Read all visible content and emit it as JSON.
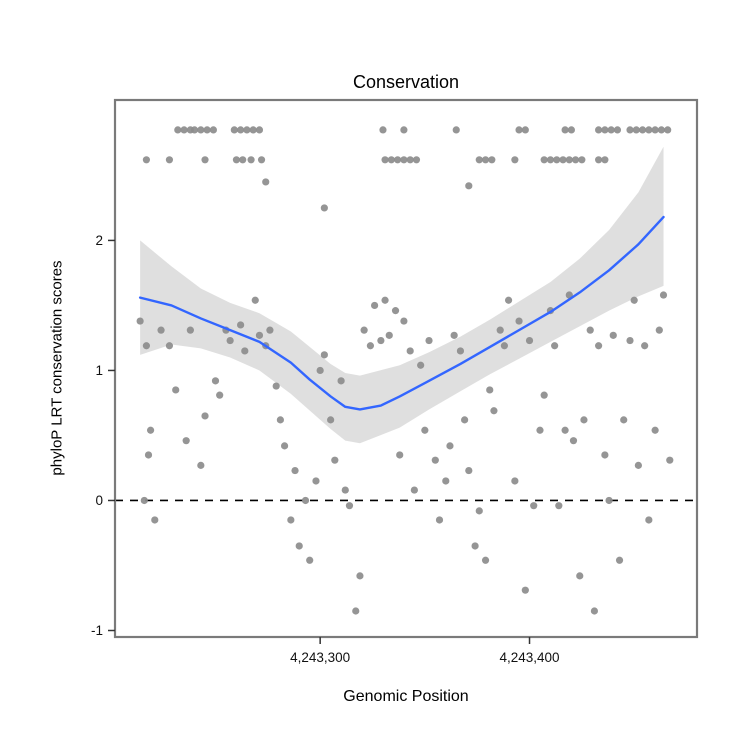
{
  "title": "Conservation",
  "chart_data": {
    "type": "scatter",
    "title": "Conservation",
    "xlabel": "Genomic Position",
    "ylabel": "phyloP LRT conservation scores",
    "xlim": [
      4243202,
      4243480
    ],
    "ylim": [
      -1.05,
      3.08
    ],
    "grid": false,
    "legend": "none",
    "x_ticks": [
      {
        "value": 4243300,
        "label": "4,243,300"
      },
      {
        "value": 4243400,
        "label": "4,243,400"
      }
    ],
    "y_ticks": [
      {
        "value": -1,
        "label": "-1"
      },
      {
        "value": 0,
        "label": "0"
      },
      {
        "value": 1,
        "label": "1"
      },
      {
        "value": 2,
        "label": "2"
      }
    ],
    "reference_line_y": 0,
    "colors": {
      "point": "#8c8c8c",
      "smooth": "#3366FF",
      "band": "#c9c9c9",
      "panel_border": "#7a7a7a",
      "dashed_line": "#000000",
      "tick": "#333333",
      "tick_label": "#111111"
    },
    "points": [
      [
        4243214,
        1.38
      ],
      [
        4243217,
        1.19
      ],
      [
        4243219,
        0.54
      ],
      [
        4243218,
        0.35
      ],
      [
        4243216,
        0.0
      ],
      [
        4243221,
        -0.15
      ],
      [
        4243224,
        1.31
      ],
      [
        4243228,
        1.19
      ],
      [
        4243231,
        0.85
      ],
      [
        4243236,
        0.46
      ],
      [
        4243238,
        1.31
      ],
      [
        4243243,
        0.27
      ],
      [
        4243245,
        0.65
      ],
      [
        4243250,
        0.92
      ],
      [
        4243252,
        0.81
      ],
      [
        4243255,
        1.31
      ],
      [
        4243257,
        1.23
      ],
      [
        4243262,
        1.35
      ],
      [
        4243264,
        1.15
      ],
      [
        4243269,
        1.54
      ],
      [
        4243271,
        1.27
      ],
      [
        4243274,
        1.19
      ],
      [
        4243276,
        1.31
      ],
      [
        4243279,
        0.88
      ],
      [
        4243281,
        0.62
      ],
      [
        4243283,
        0.42
      ],
      [
        4243286,
        -0.15
      ],
      [
        4243288,
        0.23
      ],
      [
        4243290,
        -0.35
      ],
      [
        4243293,
        0.0
      ],
      [
        4243295,
        -0.46
      ],
      [
        4243298,
        0.15
      ],
      [
        4243300,
        1.0
      ],
      [
        4243302,
        1.12
      ],
      [
        4243305,
        0.62
      ],
      [
        4243307,
        0.31
      ],
      [
        4243310,
        0.92
      ],
      [
        4243312,
        0.08
      ],
      [
        4243314,
        -0.04
      ],
      [
        4243317,
        -0.85
      ],
      [
        4243319,
        -0.58
      ],
      [
        4243321,
        1.31
      ],
      [
        4243324,
        1.19
      ],
      [
        4243326,
        1.5
      ],
      [
        4243329,
        1.23
      ],
      [
        4243331,
        1.54
      ],
      [
        4243333,
        1.27
      ],
      [
        4243336,
        1.46
      ],
      [
        4243338,
        0.35
      ],
      [
        4243340,
        1.38
      ],
      [
        4243343,
        1.15
      ],
      [
        4243345,
        0.08
      ],
      [
        4243348,
        1.04
      ],
      [
        4243350,
        0.54
      ],
      [
        4243352,
        1.23
      ],
      [
        4243355,
        0.31
      ],
      [
        4243357,
        -0.15
      ],
      [
        4243360,
        0.15
      ],
      [
        4243362,
        0.42
      ],
      [
        4243364,
        1.27
      ],
      [
        4243367,
        1.15
      ],
      [
        4243369,
        0.62
      ],
      [
        4243371,
        0.23
      ],
      [
        4243374,
        -0.35
      ],
      [
        4243376,
        -0.08
      ],
      [
        4243379,
        -0.46
      ],
      [
        4243381,
        0.85
      ],
      [
        4243383,
        0.69
      ],
      [
        4243386,
        1.31
      ],
      [
        4243388,
        1.19
      ],
      [
        4243390,
        1.54
      ],
      [
        4243393,
        0.15
      ],
      [
        4243395,
        1.38
      ],
      [
        4243398,
        -0.69
      ],
      [
        4243400,
        1.23
      ],
      [
        4243402,
        -0.04
      ],
      [
        4243405,
        0.54
      ],
      [
        4243407,
        0.81
      ],
      [
        4243410,
        1.46
      ],
      [
        4243412,
        1.19
      ],
      [
        4243414,
        -0.04
      ],
      [
        4243417,
        0.54
      ],
      [
        4243419,
        1.58
      ],
      [
        4243421,
        0.46
      ],
      [
        4243424,
        -0.58
      ],
      [
        4243426,
        0.62
      ],
      [
        4243429,
        1.31
      ],
      [
        4243431,
        -0.85
      ],
      [
        4243433,
        1.19
      ],
      [
        4243436,
        0.35
      ],
      [
        4243438,
        0.0
      ],
      [
        4243440,
        1.27
      ],
      [
        4243443,
        -0.46
      ],
      [
        4243445,
        0.62
      ],
      [
        4243448,
        1.23
      ],
      [
        4243450,
        1.54
      ],
      [
        4243452,
        0.27
      ],
      [
        4243455,
        1.19
      ],
      [
        4243457,
        -0.15
      ],
      [
        4243460,
        0.54
      ],
      [
        4243462,
        1.31
      ],
      [
        4243464,
        1.58
      ],
      [
        4243467,
        0.31
      ],
      [
        4243274,
        2.45
      ],
      [
        4243302,
        2.25
      ],
      [
        4243371,
        2.42
      ],
      [
        4243232,
        2.85
      ],
      [
        4243235,
        2.85
      ],
      [
        4243238,
        2.85
      ],
      [
        4243240,
        2.85
      ],
      [
        4243243,
        2.85
      ],
      [
        4243246,
        2.85
      ],
      [
        4243249,
        2.85
      ],
      [
        4243259,
        2.85
      ],
      [
        4243262,
        2.85
      ],
      [
        4243265,
        2.85
      ],
      [
        4243268,
        2.85
      ],
      [
        4243271,
        2.85
      ],
      [
        4243330,
        2.85
      ],
      [
        4243340,
        2.85
      ],
      [
        4243365,
        2.85
      ],
      [
        4243395,
        2.85
      ],
      [
        4243398,
        2.85
      ],
      [
        4243417,
        2.85
      ],
      [
        4243420,
        2.85
      ],
      [
        4243433,
        2.85
      ],
      [
        4243436,
        2.85
      ],
      [
        4243439,
        2.85
      ],
      [
        4243442,
        2.85
      ],
      [
        4243448,
        2.85
      ],
      [
        4243451,
        2.85
      ],
      [
        4243454,
        2.85
      ],
      [
        4243457,
        2.85
      ],
      [
        4243460,
        2.85
      ],
      [
        4243463,
        2.85
      ],
      [
        4243466,
        2.85
      ],
      [
        4243217,
        2.62
      ],
      [
        4243228,
        2.62
      ],
      [
        4243245,
        2.62
      ],
      [
        4243260,
        2.62
      ],
      [
        4243263,
        2.62
      ],
      [
        4243267,
        2.62
      ],
      [
        4243272,
        2.62
      ],
      [
        4243331,
        2.62
      ],
      [
        4243334,
        2.62
      ],
      [
        4243337,
        2.62
      ],
      [
        4243340,
        2.62
      ],
      [
        4243343,
        2.62
      ],
      [
        4243346,
        2.62
      ],
      [
        4243376,
        2.62
      ],
      [
        4243379,
        2.62
      ],
      [
        4243382,
        2.62
      ],
      [
        4243393,
        2.62
      ],
      [
        4243407,
        2.62
      ],
      [
        4243410,
        2.62
      ],
      [
        4243413,
        2.62
      ],
      [
        4243416,
        2.62
      ],
      [
        4243419,
        2.62
      ],
      [
        4243422,
        2.62
      ],
      [
        4243425,
        2.62
      ],
      [
        4243433,
        2.62
      ],
      [
        4243436,
        2.62
      ]
    ],
    "smooth_line": [
      [
        4243214,
        1.56
      ],
      [
        4243229,
        1.5
      ],
      [
        4243243,
        1.4
      ],
      [
        4243257,
        1.31
      ],
      [
        4243271,
        1.22
      ],
      [
        4243286,
        1.06
      ],
      [
        4243295,
        0.93
      ],
      [
        4243305,
        0.8
      ],
      [
        4243312,
        0.72
      ],
      [
        4243319,
        0.7
      ],
      [
        4243329,
        0.73
      ],
      [
        4243338,
        0.8
      ],
      [
        4243352,
        0.92
      ],
      [
        4243367,
        1.05
      ],
      [
        4243381,
        1.18
      ],
      [
        4243395,
        1.31
      ],
      [
        4243410,
        1.45
      ],
      [
        4243424,
        1.6
      ],
      [
        4243438,
        1.77
      ],
      [
        4243452,
        1.97
      ],
      [
        4243464,
        2.18
      ]
    ],
    "confidence_band": [
      [
        4243214,
        1.12,
        2.0
      ],
      [
        4243229,
        1.2,
        1.8
      ],
      [
        4243243,
        1.17,
        1.63
      ],
      [
        4243257,
        1.1,
        1.52
      ],
      [
        4243271,
        1.0,
        1.44
      ],
      [
        4243286,
        0.82,
        1.3
      ],
      [
        4243305,
        0.55,
        1.05
      ],
      [
        4243312,
        0.46,
        0.98
      ],
      [
        4243319,
        0.44,
        0.96
      ],
      [
        4243338,
        0.56,
        1.04
      ],
      [
        4243352,
        0.7,
        1.14
      ],
      [
        4243367,
        0.84,
        1.26
      ],
      [
        4243381,
        0.97,
        1.39
      ],
      [
        4243395,
        1.09,
        1.53
      ],
      [
        4243410,
        1.22,
        1.68
      ],
      [
        4243424,
        1.34,
        1.86
      ],
      [
        4243438,
        1.46,
        2.08
      ],
      [
        4243452,
        1.57,
        2.37
      ],
      [
        4243464,
        1.65,
        2.72
      ]
    ]
  }
}
